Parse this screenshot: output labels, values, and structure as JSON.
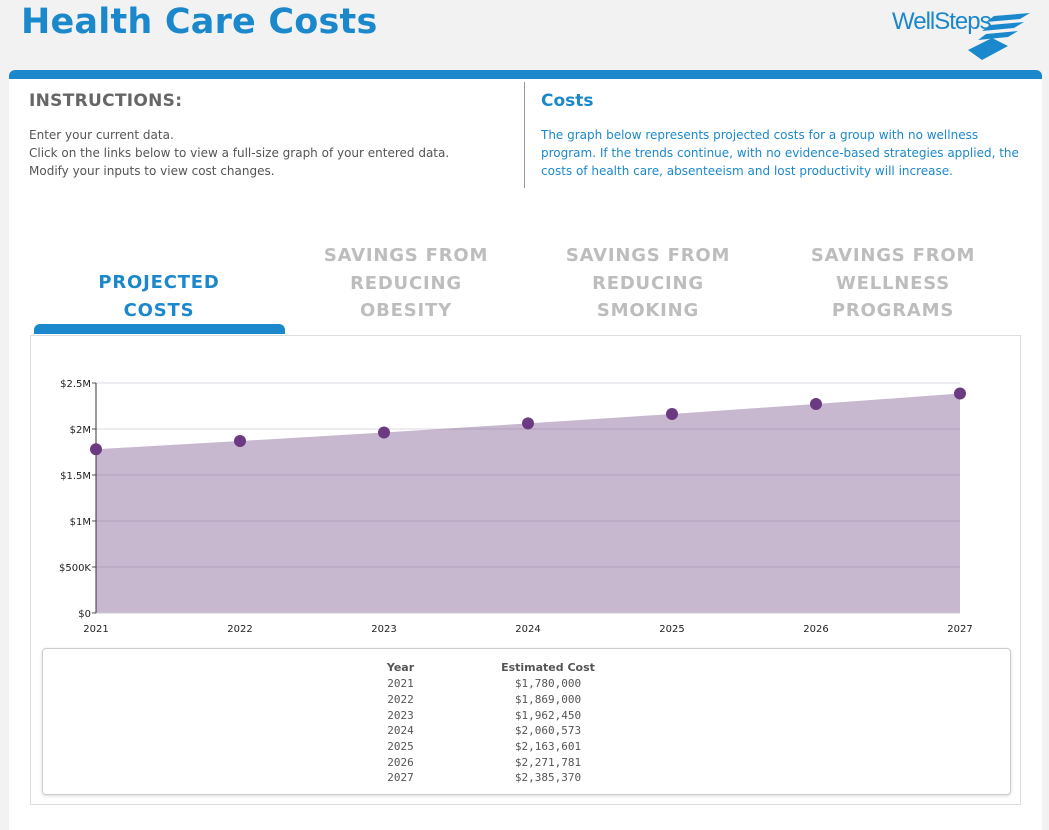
{
  "header": {
    "title": "Health Care Costs",
    "logo_text": "WellSteps"
  },
  "instructions": {
    "heading": "INSTRUCTIONS:",
    "lines": [
      "Enter your current data.",
      "Click on the links below to view a full-size graph of your entered data.",
      "Modify your inputs to view cost changes."
    ]
  },
  "costs": {
    "heading": "Costs",
    "description": "The graph below represents projected costs for a group with no wellness program. If the trends continue, with no evidence-based strategies applied, the costs of health care, absenteeism and lost productivity will increase."
  },
  "tabs": [
    {
      "label": "PROJECTED COSTS",
      "active": true
    },
    {
      "label": "SAVINGS FROM REDUCING OBESITY",
      "active": false
    },
    {
      "label": "SAVINGS FROM REDUCING SMOKING",
      "active": false
    },
    {
      "label": "SAVINGS FROM WELLNESS PROGRAMS",
      "active": false
    }
  ],
  "colors": {
    "accent": "#1c88cc",
    "area_fill": "#c7b7cf",
    "point": "#6b3a82",
    "inactive_tab": "#bdbdbd"
  },
  "chart_data": {
    "type": "area",
    "x": [
      "2021",
      "2022",
      "2023",
      "2024",
      "2025",
      "2026",
      "2027"
    ],
    "values": [
      1780000,
      1869000,
      1962450,
      2060573,
      2163601,
      2271781,
      2385370
    ],
    "ylim": [
      0,
      2500000
    ],
    "yticks": [
      0,
      500000,
      1000000,
      1500000,
      2000000,
      2500000
    ],
    "ytick_labels": [
      "$0",
      "$500K",
      "$1M",
      "$1.5M",
      "$2M",
      "$2.5M"
    ],
    "grid": true,
    "title": "",
    "xlabel": "",
    "ylabel": ""
  },
  "table": {
    "headers": [
      "Year",
      "Estimated Cost"
    ],
    "rows": [
      [
        "2021",
        "$1,780,000"
      ],
      [
        "2022",
        "$1,869,000"
      ],
      [
        "2023",
        "$1,962,450"
      ],
      [
        "2024",
        "$2,060,573"
      ],
      [
        "2025",
        "$2,163,601"
      ],
      [
        "2026",
        "$2,271,781"
      ],
      [
        "2027",
        "$2,385,370"
      ]
    ]
  }
}
